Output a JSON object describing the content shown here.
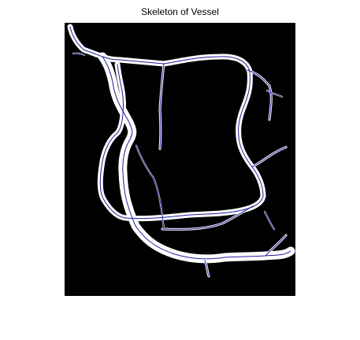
{
  "figure": {
    "title": "Skeleton of Vessel",
    "background_color": "#ffffff",
    "image_background_color": "#000000",
    "vessel_color": "#ffffff",
    "skeleton_color": "#1f1f9f"
  }
}
